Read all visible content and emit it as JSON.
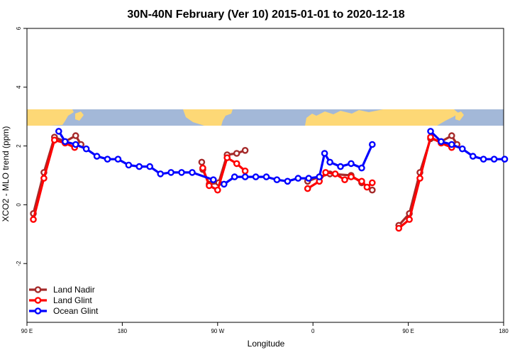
{
  "chart_data": {
    "type": "line",
    "title": "30N-40N February (Ver 10)   2015-01-01 to 2020-12-18",
    "xlabel": "Longitude",
    "ylabel": "XCO2 - MLO trend (ppm)",
    "xlim": [
      90,
      540
    ],
    "ylim": [
      -4,
      6
    ],
    "x_ticks": [
      {
        "value": 90,
        "label": "90 E"
      },
      {
        "value": 180,
        "label": "180"
      },
      {
        "value": 270,
        "label": "90 W"
      },
      {
        "value": 360,
        "label": "0"
      },
      {
        "value": 450,
        "label": "90 E"
      },
      {
        "value": 540,
        "label": "180"
      }
    ],
    "y_ticks": [
      {
        "value": -2,
        "label": "-2"
      },
      {
        "value": 0,
        "label": "0"
      },
      {
        "value": 2,
        "label": "2"
      },
      {
        "value": 4,
        "label": "4"
      },
      {
        "value": 6,
        "label": "6"
      }
    ],
    "grid": false,
    "legend_position": "bottom-left",
    "map_strip": {
      "y_from": 2.8,
      "y_to": 3.35,
      "ocean_color": "#a3b8d8",
      "land_color": "#fdd876"
    },
    "series": [
      {
        "name": "Land Nadir",
        "color": "#a52a2a",
        "segments": [
          [
            [
              96,
              -0.3
            ],
            [
              106,
              1.1
            ],
            [
              116,
              2.3
            ],
            [
              126,
              2.15
            ],
            [
              136,
              2.35
            ],
            [
              141,
              2.05
            ]
          ],
          [
            [
              255,
              1.45
            ],
            [
              256,
              1.2
            ],
            [
              262,
              0.7
            ],
            [
              271,
              0.75
            ],
            [
              279,
              1.7
            ],
            [
              288,
              1.75
            ],
            [
              296,
              1.85
            ]
          ],
          [
            [
              355,
              0.8
            ],
            [
              366,
              0.95
            ],
            [
              376,
              1.05
            ],
            [
              396,
              1.0
            ],
            [
              406,
              0.75
            ],
            [
              416,
              0.5
            ]
          ],
          [
            [
              441,
              -0.7
            ],
            [
              451,
              -0.3
            ],
            [
              461,
              1.1
            ],
            [
              471,
              2.25
            ],
            [
              481,
              2.15
            ],
            [
              491,
              2.35
            ],
            [
              496,
              2.05
            ]
          ]
        ]
      },
      {
        "name": "Land Glint",
        "color": "#ff0000",
        "segments": [
          [
            [
              96,
              -0.5
            ],
            [
              106,
              0.9
            ],
            [
              116,
              2.2
            ],
            [
              126,
              2.1
            ],
            [
              135,
              1.95
            ]
          ],
          [
            [
              256,
              1.25
            ],
            [
              262,
              0.65
            ],
            [
              270,
              0.5
            ],
            [
              279,
              1.6
            ],
            [
              288,
              1.4
            ],
            [
              296,
              1.15
            ]
          ],
          [
            [
              355,
              0.55
            ],
            [
              366,
              0.8
            ],
            [
              372,
              1.1
            ],
            [
              381,
              1.05
            ],
            [
              390,
              0.85
            ],
            [
              396,
              0.95
            ],
            [
              406,
              0.8
            ],
            [
              411,
              0.6
            ],
            [
              416,
              0.75
            ]
          ],
          [
            [
              441,
              -0.8
            ],
            [
              451,
              -0.5
            ],
            [
              461,
              0.9
            ],
            [
              471,
              2.3
            ],
            [
              481,
              2.1
            ],
            [
              491,
              1.95
            ]
          ]
        ]
      },
      {
        "name": "Ocean Glint",
        "color": "#0000ff",
        "segments": [
          [
            [
              120,
              2.5
            ],
            [
              126,
              2.15
            ],
            [
              136,
              2.05
            ],
            [
              146,
              1.9
            ],
            [
              156,
              1.65
            ],
            [
              166,
              1.55
            ],
            [
              176,
              1.55
            ],
            [
              186,
              1.35
            ],
            [
              196,
              1.3
            ],
            [
              206,
              1.3
            ],
            [
              216,
              1.05
            ],
            [
              226,
              1.1
            ],
            [
              236,
              1.1
            ],
            [
              246,
              1.1
            ],
            [
              266,
              0.85
            ]
          ],
          [
            [
              276,
              0.7
            ],
            [
              286,
              0.95
            ],
            [
              296,
              0.95
            ],
            [
              306,
              0.95
            ],
            [
              316,
              0.95
            ],
            [
              326,
              0.85
            ],
            [
              336,
              0.8
            ],
            [
              346,
              0.9
            ],
            [
              356,
              0.9
            ],
            [
              366,
              0.95
            ],
            [
              371,
              1.75
            ],
            [
              376,
              1.45
            ],
            [
              386,
              1.3
            ],
            [
              396,
              1.4
            ],
            [
              406,
              1.25
            ],
            [
              416,
              2.05
            ]
          ],
          [
            [
              471,
              2.5
            ],
            [
              481,
              2.15
            ],
            [
              491,
              2.05
            ],
            [
              501,
              1.9
            ],
            [
              511,
              1.65
            ],
            [
              521,
              1.55
            ],
            [
              531,
              1.55
            ],
            [
              541,
              1.55
            ]
          ]
        ]
      }
    ]
  }
}
